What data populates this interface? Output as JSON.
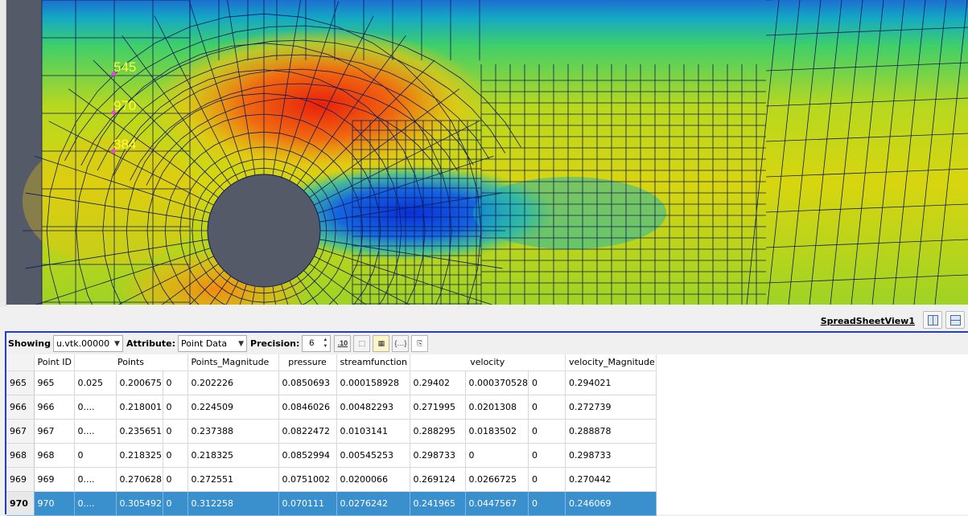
{
  "render_view": {
    "point_labels": [
      {
        "id": "545"
      },
      {
        "id": "970"
      },
      {
        "id": "384"
      }
    ],
    "label_color": "#ffff33",
    "marker_color": "#ff33ff",
    "obstacle_color": "#555a68"
  },
  "view_bar": {
    "title": "SpreadSheetView1"
  },
  "toolbar": {
    "showing_label": "Showing",
    "showing_value": "u.vtk.00000",
    "attribute_label": "Attribute:",
    "attribute_value": "Point Data",
    "precision_label": "Precision:",
    "precision_value": "6",
    "fixed_notation_label": ".10"
  },
  "table": {
    "columns": [
      "Point ID",
      "Points",
      "Points_Magnitude",
      "pressure",
      "streamfunction",
      "velocity",
      "velocity_Magnitude"
    ],
    "rows": [
      {
        "row": "965",
        "point_id": "965",
        "p0": "0.025",
        "p1": "0.200675",
        "p2": "0",
        "pmag": "0.202226",
        "pressure": "0.0850693",
        "stream": "0.000158928",
        "v0": "0.29402",
        "v1": "0.000370528",
        "v2": "0",
        "vmag": "0.294021"
      },
      {
        "row": "966",
        "point_id": "966",
        "p0": "0....",
        "p1": "0.218001",
        "p2": "0",
        "pmag": "0.224509",
        "pressure": "0.0846026",
        "stream": "0.00482293",
        "v0": "0.271995",
        "v1": "0.0201308",
        "v2": "0",
        "vmag": "0.272739"
      },
      {
        "row": "967",
        "point_id": "967",
        "p0": "0....",
        "p1": "0.235651",
        "p2": "0",
        "pmag": "0.237388",
        "pressure": "0.0822472",
        "stream": "0.0103141",
        "v0": "0.288295",
        "v1": "0.0183502",
        "v2": "0",
        "vmag": "0.288878"
      },
      {
        "row": "968",
        "point_id": "968",
        "p0": "0",
        "p1": "0.218325",
        "p2": "0",
        "pmag": "0.218325",
        "pressure": "0.0852994",
        "stream": "0.00545253",
        "v0": "0.298733",
        "v1": "0",
        "v2": "0",
        "vmag": "0.298733"
      },
      {
        "row": "969",
        "point_id": "969",
        "p0": "0....",
        "p1": "0.270628",
        "p2": "0",
        "pmag": "0.272551",
        "pressure": "0.0751002",
        "stream": "0.0200066",
        "v0": "0.269124",
        "v1": "0.0266725",
        "v2": "0",
        "vmag": "0.270442"
      },
      {
        "row": "970",
        "point_id": "970",
        "p0": "0....",
        "p1": "0.305492",
        "p2": "0",
        "pmag": "0.312258",
        "pressure": "0.070111",
        "stream": "0.0276242",
        "v0": "0.241965",
        "v1": "0.0447567",
        "v2": "0",
        "vmag": "0.246069",
        "selected": true
      }
    ]
  },
  "colors": {
    "selection": "#3a8fcd",
    "panel_border": "#1f3ec9"
  }
}
